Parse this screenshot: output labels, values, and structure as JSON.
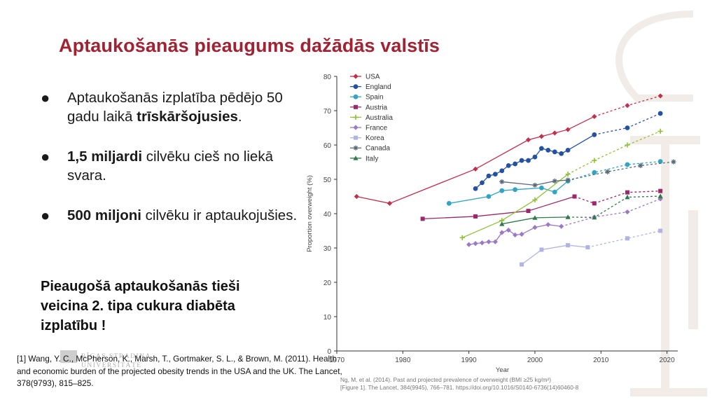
{
  "slide": {
    "title": "Aptaukošanās pieaugums dažādās valstīs",
    "bullets": [
      {
        "pre": "Aptaukošanās izplatība pēdējo 50 gadu laikā ",
        "bold": "trīskāršojusies",
        "post": "."
      },
      {
        "pre": "",
        "bold": "1,5 miljardi",
        "post": " cilvēku cieš no liekā svara."
      },
      {
        "pre": "",
        "bold": "500 miljoni",
        "post": " cilvēku ir aptaukojušies."
      }
    ],
    "callout": "Pieaugošā aptaukošanās tieši veicina 2. tipa cukura diabēta izplatību !",
    "logo_text": [
      "RĪGAS STRADIŅA",
      "UNIVERSITĀTE"
    ],
    "reference": "[1] Wang, Y. C., McPherson, K., Marsh, T., Gortmaker, S. L., & Brown, M. (2011). Health and economic burden of the projected obesity trends in the USA and the UK. The Lancet, 378(9793), 815–825.",
    "chart_source": [
      "Ng, M. et al. (2014). Past and projected prevalence of overweight (BMI ≥25 kg/m²)",
      "[Figure 1]. The Lancet, 384(9945), 766–781. https://doi.org/10.1016/S0140-6736(14)60460-8"
    ]
  },
  "chart_data": {
    "type": "line",
    "xlabel": "Year",
    "ylabel": "Proportion overweight (%)",
    "xlim": [
      1970,
      2021
    ],
    "ylim": [
      0,
      80
    ],
    "xticks": [
      1970,
      1980,
      1990,
      2000,
      2010,
      2020
    ],
    "yticks": [
      0,
      10,
      20,
      30,
      40,
      50,
      60,
      70,
      80
    ],
    "grid": false,
    "legend_position": "top-left",
    "series": [
      {
        "name": "USA",
        "color": "#c0304c",
        "marker": "diamond",
        "solid": [
          [
            1973,
            45
          ],
          [
            1978,
            43
          ],
          [
            1991,
            53
          ],
          [
            1999,
            61.5
          ],
          [
            2001,
            62.5
          ],
          [
            2003,
            63.5
          ],
          [
            2005,
            64.5
          ],
          [
            2009,
            68.3
          ]
        ],
        "dashed": [
          [
            2009,
            68.3
          ],
          [
            2014,
            71.5
          ],
          [
            2019,
            74.3
          ]
        ]
      },
      {
        "name": "England",
        "color": "#2452a0",
        "marker": "circle",
        "solid": [
          [
            1991,
            47.3
          ],
          [
            1992,
            49
          ],
          [
            1993,
            51
          ],
          [
            1994,
            51.5
          ],
          [
            1995,
            52.5
          ],
          [
            1996,
            54
          ],
          [
            1997,
            54.5
          ],
          [
            1998,
            55.5
          ],
          [
            1999,
            55.5
          ],
          [
            2000,
            56.5
          ],
          [
            2001,
            59
          ],
          [
            2002,
            58.5
          ],
          [
            2003,
            58
          ],
          [
            2004,
            57.5
          ],
          [
            2005,
            58.5
          ],
          [
            2009,
            63
          ]
        ],
        "dashed": [
          [
            2009,
            63
          ],
          [
            2014,
            65
          ],
          [
            2019,
            69.2
          ]
        ]
      },
      {
        "name": "Spain",
        "color": "#33a4c4",
        "marker": "circle",
        "solid": [
          [
            1987,
            43
          ],
          [
            1993,
            45
          ],
          [
            1995,
            46.7
          ],
          [
            1997,
            47
          ],
          [
            2001,
            47.5
          ],
          [
            2003,
            46.3
          ],
          [
            2005,
            49.5
          ]
        ],
        "dashed": [
          [
            2005,
            49.5
          ],
          [
            2009,
            52
          ],
          [
            2014,
            54.3
          ],
          [
            2019,
            55.2
          ]
        ]
      },
      {
        "name": "Austria",
        "color": "#9a2a6c",
        "marker": "square",
        "solid": [
          [
            1983,
            38.5
          ],
          [
            1991,
            39.2
          ],
          [
            1999,
            40.8
          ],
          [
            2006,
            45
          ]
        ],
        "dashed": [
          [
            2006,
            45
          ],
          [
            2009,
            43
          ],
          [
            2014,
            46.2
          ],
          [
            2019,
            46.6
          ]
        ]
      },
      {
        "name": "Australia",
        "color": "#90c03a",
        "marker": "plus",
        "solid": [
          [
            1989,
            33
          ],
          [
            1995,
            38
          ],
          [
            2000,
            44
          ],
          [
            2005,
            51.5
          ]
        ],
        "dashed": [
          [
            2005,
            51.5
          ],
          [
            2009,
            55.5
          ],
          [
            2014,
            60
          ],
          [
            2019,
            64
          ]
        ]
      },
      {
        "name": "France",
        "color": "#9a7ac4",
        "marker": "diamond",
        "solid": [
          [
            1990,
            31
          ],
          [
            1991,
            31.3
          ],
          [
            1992,
            31.5
          ],
          [
            1993,
            31.8
          ],
          [
            1994,
            31.8
          ],
          [
            1995,
            34.5
          ],
          [
            1996,
            35.2
          ],
          [
            1997,
            33.8
          ],
          [
            1998,
            34
          ],
          [
            2000,
            36
          ],
          [
            2002,
            36.8
          ],
          [
            2004,
            36.3
          ]
        ],
        "dashed": [
          [
            2004,
            36.3
          ],
          [
            2009,
            39
          ],
          [
            2014,
            40.5
          ],
          [
            2019,
            44.3
          ]
        ]
      },
      {
        "name": "Korea",
        "color": "#b0b4e4",
        "marker": "square",
        "solid": [
          [
            1998,
            25.2
          ],
          [
            2001,
            29.5
          ],
          [
            2005,
            30.8
          ],
          [
            2008,
            30.2
          ]
        ],
        "dashed": [
          [
            2008,
            30.2
          ],
          [
            2014,
            32.8
          ],
          [
            2019,
            35
          ]
        ]
      },
      {
        "name": "Canada",
        "color": "#5a6a78",
        "marker": "star",
        "solid": [
          [
            1995,
            49.3
          ],
          [
            2000,
            48.3
          ],
          [
            2003,
            49.5
          ],
          [
            2005,
            49.8
          ]
        ],
        "dashed": [
          [
            2005,
            49.8
          ],
          [
            2011,
            52.2
          ],
          [
            2016,
            54
          ],
          [
            2021,
            55.1
          ]
        ]
      },
      {
        "name": "Italy",
        "color": "#2e7a4a",
        "marker": "triangle",
        "solid": [
          [
            1995,
            37
          ],
          [
            2000,
            38.8
          ],
          [
            2005,
            39
          ]
        ],
        "dashed": [
          [
            2005,
            39
          ],
          [
            2009,
            38.9
          ],
          [
            2014,
            44.8
          ],
          [
            2019,
            45.1
          ]
        ]
      }
    ]
  }
}
